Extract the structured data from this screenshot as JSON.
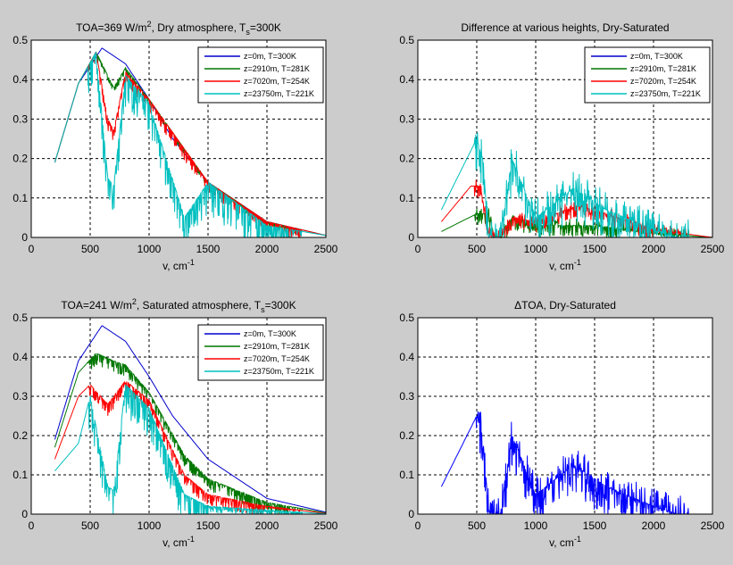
{
  "chart_data": [
    {
      "id": "dry",
      "type": "line",
      "title_parts": {
        "pre": "TOA=369 W/m",
        "sup": "2",
        "mid": ", Dry atmosphere, T",
        "sub": "s",
        "post": "=300K"
      },
      "xlabel": {
        "base": "v, cm",
        "sup": "-1"
      },
      "ylabel": "",
      "xlim": [
        0,
        2500
      ],
      "ylim": [
        0,
        0.5
      ],
      "xticks": [
        "0",
        "500",
        "1000",
        "1500",
        "2000",
        "2500"
      ],
      "yticks": [
        "0",
        "0.1",
        "0.2",
        "0.3",
        "0.4",
        "0.5"
      ],
      "grid": true,
      "legend_position": "top-right",
      "series": [
        {
          "name": "z=0m, T=300K",
          "color": "#0000cc",
          "x": [
            200,
            400,
            600,
            800,
            1000,
            1200,
            1500,
            2000,
            2500
          ],
          "y": [
            0.19,
            0.39,
            0.48,
            0.44,
            0.35,
            0.25,
            0.14,
            0.04,
            0.005
          ]
        },
        {
          "name": "z=2910m, T=281K",
          "color": "#007700",
          "x": [
            200,
            400,
            550,
            700,
            800,
            1000,
            1500,
            2000,
            2500
          ],
          "y": [
            0.19,
            0.39,
            0.47,
            0.38,
            0.43,
            0.35,
            0.14,
            0.04,
            0.005
          ]
        },
        {
          "name": "z=7020m, T=254K",
          "color": "#ff0000",
          "x": [
            200,
            400,
            550,
            650,
            700,
            800,
            1000,
            1500,
            2000,
            2500
          ],
          "y": [
            0.19,
            0.39,
            0.47,
            0.3,
            0.27,
            0.42,
            0.35,
            0.14,
            0.04,
            0.005
          ]
        },
        {
          "name": "z=23750m, T=221K",
          "color": "#00bfbf",
          "x": [
            200,
            400,
            550,
            650,
            700,
            800,
            1000,
            1300,
            1500,
            2000,
            2500
          ],
          "y": [
            0.19,
            0.39,
            0.47,
            0.15,
            0.13,
            0.41,
            0.34,
            0.05,
            0.14,
            0.03,
            0.005
          ]
        }
      ]
    },
    {
      "id": "diff",
      "type": "line",
      "title": "Difference at various heights, Dry-Saturated",
      "xlabel": {
        "base": "v, cm",
        "sup": "-1"
      },
      "ylabel": "",
      "xlim": [
        0,
        2500
      ],
      "ylim": [
        0,
        0.5
      ],
      "xticks": [
        "0",
        "500",
        "1000",
        "1500",
        "2000",
        "2500"
      ],
      "yticks": [
        "0",
        "0.1",
        "0.2",
        "0.3",
        "0.4",
        "0.5"
      ],
      "grid": true,
      "legend_position": "top-right",
      "series": [
        {
          "name": "z=0m, T=300K",
          "color": "#0000cc",
          "x": [
            200,
            2500
          ],
          "y": [
            0,
            0
          ]
        },
        {
          "name": "z=2910m, T=281K",
          "color": "#007700",
          "x": [
            200,
            500,
            600,
            650,
            700,
            800,
            1000,
            1300,
            1500,
            2000,
            2500
          ],
          "y": [
            0.015,
            0.06,
            0.06,
            0,
            0,
            0.05,
            0.03,
            0.03,
            0.03,
            0.01,
            0
          ]
        },
        {
          "name": "z=7020m, T=254K",
          "color": "#ff0000",
          "x": [
            200,
            450,
            530,
            600,
            650,
            700,
            800,
            1000,
            1350,
            1500,
            2000,
            2500
          ],
          "y": [
            0.04,
            0.13,
            0.13,
            0.01,
            0,
            0,
            0.05,
            0.04,
            0.08,
            0.07,
            0.02,
            0
          ]
        },
        {
          "name": "z=23750m, T=221K",
          "color": "#00bfbf",
          "x": [
            200,
            500,
            550,
            600,
            650,
            700,
            800,
            1000,
            1300,
            1400,
            1600,
            2000,
            2200,
            2500
          ],
          "y": [
            0.07,
            0.25,
            0.2,
            0.01,
            0,
            0,
            0.2,
            0.05,
            0.12,
            0.11,
            0.07,
            0.02,
            0,
            0
          ]
        }
      ]
    },
    {
      "id": "sat",
      "type": "line",
      "title_parts": {
        "pre": "TOA=241 W/m",
        "sup": "2",
        "mid": ", Saturated atmosphere, T",
        "sub": "s",
        "post": "=300K"
      },
      "xlabel": {
        "base": "v, cm",
        "sup": "-1"
      },
      "ylabel": "",
      "xlim": [
        0,
        2500
      ],
      "ylim": [
        0,
        0.5
      ],
      "xticks": [
        "0",
        "500",
        "1000",
        "1500",
        "2000",
        "2500"
      ],
      "yticks": [
        "0",
        "0.1",
        "0.2",
        "0.3",
        "0.4",
        "0.5"
      ],
      "grid": true,
      "legend_position": "top-right",
      "series": [
        {
          "name": "z=0m, T=300K",
          "color": "#0000cc",
          "x": [
            200,
            400,
            600,
            800,
            1000,
            1200,
            1500,
            2000,
            2500
          ],
          "y": [
            0.19,
            0.39,
            0.48,
            0.44,
            0.35,
            0.25,
            0.14,
            0.04,
            0.005
          ]
        },
        {
          "name": "z=2910m, T=281K",
          "color": "#007700",
          "x": [
            200,
            400,
            550,
            700,
            800,
            1000,
            1300,
            1500,
            2000,
            2500
          ],
          "y": [
            0.17,
            0.36,
            0.41,
            0.39,
            0.38,
            0.31,
            0.15,
            0.09,
            0.03,
            0.003
          ]
        },
        {
          "name": "z=7020m, T=254K",
          "color": "#ff0000",
          "x": [
            200,
            400,
            500,
            650,
            700,
            800,
            1000,
            1300,
            1500,
            2000,
            2500
          ],
          "y": [
            0.14,
            0.3,
            0.33,
            0.28,
            0.3,
            0.34,
            0.29,
            0.1,
            0.05,
            0.02,
            0.002
          ]
        },
        {
          "name": "z=23750m, T=221K",
          "color": "#00bfbf",
          "x": [
            200,
            400,
            500,
            650,
            700,
            800,
            1000,
            1300,
            1500,
            2000,
            2500
          ],
          "y": [
            0.11,
            0.18,
            0.3,
            0.07,
            0.06,
            0.33,
            0.27,
            0.05,
            0.02,
            0.01,
            0.001
          ]
        }
      ]
    },
    {
      "id": "dtoa",
      "type": "line",
      "title_parts": {
        "pre": "ΔTOA, Dry-Saturated"
      },
      "xlabel": {
        "base": "v, cm",
        "sup": "-1"
      },
      "ylabel": "",
      "xlim": [
        0,
        2500
      ],
      "ylim": [
        0,
        0.5
      ],
      "xticks": [
        "0",
        "500",
        "1000",
        "1500",
        "2000",
        "2500"
      ],
      "yticks": [
        "0",
        "0.1",
        "0.2",
        "0.3",
        "0.4",
        "0.5"
      ],
      "grid": true,
      "series": [
        {
          "name": "ΔTOA",
          "color": "#0000ff",
          "x": [
            200,
            500,
            550,
            600,
            650,
            700,
            800,
            1000,
            1300,
            1400,
            1600,
            2000,
            2200,
            2500
          ],
          "y": [
            0.07,
            0.25,
            0.2,
            0.01,
            0,
            0,
            0.2,
            0.05,
            0.12,
            0.11,
            0.07,
            0.02,
            0,
            0
          ]
        }
      ]
    }
  ]
}
